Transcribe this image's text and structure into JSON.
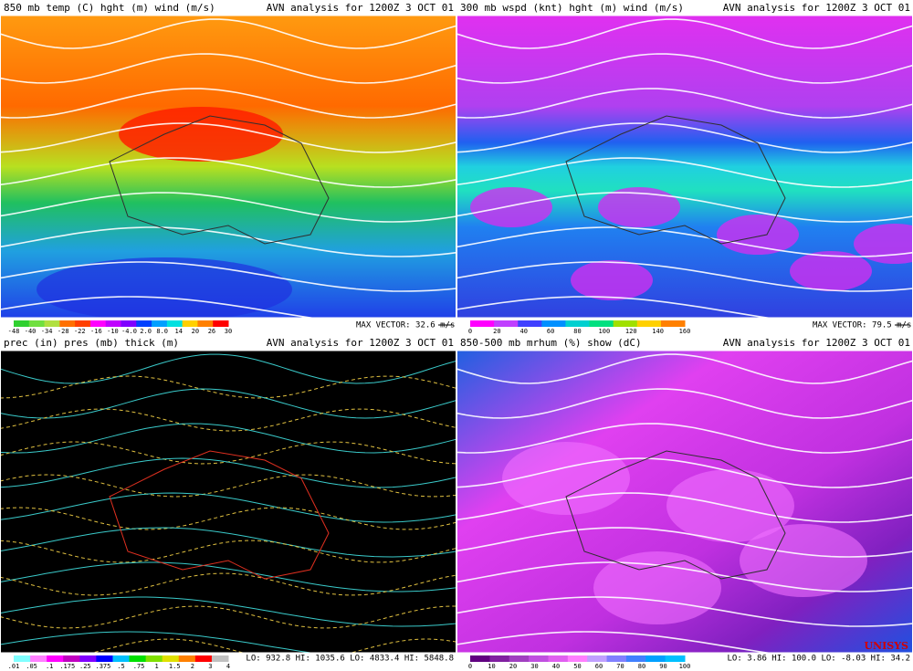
{
  "panels": [
    {
      "title": "850 mb temp (C) hght (m) wind (m/s)",
      "analysis": "AVN analysis for 1200Z  3 OCT 01",
      "colorbar": [
        "-48",
        "-40",
        "-34",
        "-28",
        "-22",
        "-16",
        "-10",
        "-4.0",
        "2.0",
        "8.0",
        "14",
        "20",
        "26",
        "30"
      ],
      "note": "MAX VECTOR: 32.6 m/s"
    },
    {
      "title": "300 mb wspd (knt) hght (m) wind (m/s)",
      "analysis": "AVN analysis for 1200Z  3 OCT 01",
      "colorbar": [
        "0",
        "20",
        "40",
        "60",
        "80",
        "100",
        "120",
        "140",
        "160"
      ],
      "note": "MAX VECTOR: 79.5 m/s"
    },
    {
      "title": "prec (in) pres (mb) thick (m)",
      "analysis": "AVN analysis for 1200Z  3 OCT 01",
      "colorbar": [
        ".01",
        ".05",
        ".1",
        ".175",
        ".25",
        ".375",
        ".5",
        ".75",
        "1",
        "1.5",
        "2",
        "3",
        "4"
      ],
      "note": "LO: 932.8  HI: 1035.6  LO: 4833.4  HI: 5848.8"
    },
    {
      "title": "850-500 mb mrhum (%) show (dC)",
      "analysis": "AVN analysis for 1200Z  3 OCT 01",
      "colorbar": [
        "0",
        "10",
        "20",
        "30",
        "40",
        "50",
        "60",
        "70",
        "80",
        "90",
        "100"
      ],
      "note": "LO: 3.86  HI: 100.0  LO: -8.03  HI: 34.2"
    }
  ],
  "logo": "UNISYS"
}
